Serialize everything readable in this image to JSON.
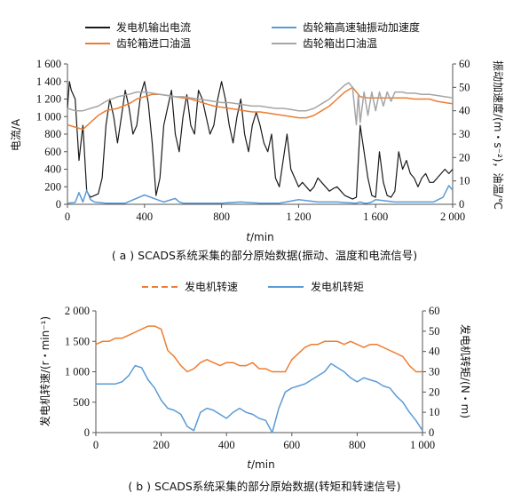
{
  "chart_data": [
    {
      "type": "line",
      "caption": "( a ) SCADS系统采集的部分原始数据(振动、温度和电流信号)",
      "xlabel_italic": "t",
      "xlabel_unit": "/min",
      "ylabel_left": "电流/A",
      "ylabel_right": "振动加速度/(m・s⁻²)，油温/℃",
      "xlim": [
        0,
        2000
      ],
      "xticks": [
        0,
        400,
        800,
        1200,
        1600,
        2000
      ],
      "xtick_labels": [
        "0",
        "400",
        "800",
        "1 200",
        "1 600",
        "2 000"
      ],
      "ylim_left": [
        0,
        1600
      ],
      "yticks_left_labels": [
        "0",
        "200",
        "400",
        "600",
        "800",
        "1 000",
        "1 200",
        "1 400",
        "1 600"
      ],
      "ylim_right": [
        0,
        60
      ],
      "yticks_right_labels": [
        "0",
        "10",
        "20",
        "30",
        "40",
        "50",
        "60"
      ],
      "legend_placement": "top, two columns",
      "series": [
        {
          "name": "发电机输出电流",
          "axis": "left",
          "color": "#1a1a1a",
          "x": [
            0,
            10,
            20,
            40,
            60,
            80,
            100,
            120,
            140,
            160,
            180,
            200,
            220,
            240,
            260,
            280,
            300,
            320,
            340,
            360,
            380,
            400,
            420,
            440,
            460,
            480,
            500,
            520,
            540,
            560,
            580,
            600,
            620,
            640,
            660,
            680,
            700,
            720,
            740,
            760,
            780,
            800,
            820,
            840,
            860,
            880,
            900,
            920,
            940,
            960,
            980,
            1000,
            1020,
            1040,
            1060,
            1080,
            1100,
            1120,
            1140,
            1160,
            1180,
            1200,
            1220,
            1240,
            1260,
            1280,
            1300,
            1320,
            1340,
            1360,
            1380,
            1400,
            1420,
            1440,
            1460,
            1480,
            1500,
            1520,
            1540,
            1560,
            1580,
            1600,
            1620,
            1640,
            1660,
            1680,
            1700,
            1720,
            1740,
            1760,
            1780,
            1800,
            1820,
            1840,
            1860,
            1880,
            1900,
            1920,
            1940,
            1960,
            1980,
            2000
          ],
          "y": [
            1100,
            1400,
            1300,
            1200,
            500,
            900,
            150,
            80,
            100,
            120,
            300,
            900,
            1200,
            1000,
            700,
            1000,
            1300,
            1100,
            800,
            900,
            1250,
            1400,
            1150,
            700,
            100,
            300,
            900,
            1100,
            1300,
            800,
            600,
            1000,
            1250,
            900,
            800,
            1300,
            1200,
            1000,
            800,
            900,
            1200,
            1400,
            1200,
            900,
            700,
            1000,
            1200,
            800,
            600,
            900,
            1050,
            900,
            700,
            600,
            800,
            300,
            200,
            500,
            800,
            400,
            300,
            200,
            250,
            200,
            150,
            200,
            300,
            250,
            200,
            150,
            180,
            200,
            150,
            100,
            80,
            60,
            80,
            900,
            600,
            300,
            100,
            80,
            600,
            250,
            100,
            80,
            150,
            600,
            400,
            500,
            350,
            300,
            200,
            300,
            350,
            250,
            250,
            300,
            350,
            400,
            350,
            400
          ]
        },
        {
          "name": "齿轮箱高速轴振动加速度",
          "axis": "right",
          "color": "#5b9bd5",
          "x": [
            0,
            40,
            60,
            80,
            100,
            120,
            140,
            160,
            200,
            300,
            400,
            500,
            560,
            580,
            600,
            700,
            800,
            900,
            1000,
            1100,
            1200,
            1300,
            1400,
            1500,
            1520,
            1540,
            1560,
            1580,
            1600,
            1700,
            1800,
            1900,
            1950,
            1980,
            2000
          ],
          "y": [
            0.5,
            0.8,
            5,
            1,
            6,
            2,
            1,
            0.8,
            0.5,
            0.5,
            4,
            1,
            2.5,
            1,
            0.5,
            0.5,
            0.5,
            1,
            0.5,
            0.5,
            2,
            1,
            1,
            0.5,
            1,
            0.5,
            0.5,
            1,
            2,
            1,
            1,
            1,
            3,
            8,
            6
          ]
        },
        {
          "name": "齿轮箱进口油温",
          "axis": "right",
          "color": "#ed7d31",
          "x": [
            0,
            40,
            80,
            120,
            160,
            200,
            260,
            320,
            360,
            400,
            440,
            480,
            520,
            560,
            600,
            640,
            680,
            720,
            760,
            800,
            840,
            880,
            920,
            960,
            1000,
            1040,
            1080,
            1120,
            1160,
            1200,
            1240,
            1280,
            1320,
            1360,
            1400,
            1440,
            1460,
            1470,
            1480,
            1500,
            1520,
            1560,
            1600,
            1640,
            1680,
            1720,
            1760,
            1800,
            1840,
            1880,
            1920,
            1960,
            2000
          ],
          "y": [
            34,
            33,
            32,
            35,
            38,
            40,
            41,
            43,
            45,
            46,
            47,
            47,
            46.5,
            46,
            45.5,
            45,
            44,
            43,
            42,
            41.5,
            41,
            40.5,
            40,
            39.5,
            39.5,
            39,
            38.5,
            38,
            37.5,
            37,
            37,
            38,
            40,
            42,
            45,
            48,
            49,
            49.5,
            50,
            48,
            46,
            45.5,
            45.5,
            45.5,
            45.5,
            45.5,
            45.5,
            45,
            45,
            45,
            44,
            43.5,
            43
          ]
        },
        {
          "name": "齿轮箱出口油温",
          "axis": "right",
          "color": "#a5a5a5",
          "x": [
            0,
            40,
            80,
            120,
            160,
            200,
            260,
            320,
            360,
            400,
            440,
            480,
            520,
            560,
            600,
            640,
            680,
            720,
            760,
            800,
            840,
            880,
            920,
            960,
            1000,
            1040,
            1080,
            1120,
            1160,
            1200,
            1240,
            1280,
            1320,
            1360,
            1400,
            1440,
            1460,
            1480,
            1490,
            1500,
            1510,
            1520,
            1540,
            1560,
            1580,
            1600,
            1620,
            1640,
            1660,
            1680,
            1700,
            1720,
            1740,
            1760,
            1800,
            1840,
            1880,
            1920,
            1960,
            2000
          ],
          "y": [
            41,
            40,
            40,
            41,
            42,
            44,
            46,
            47,
            48,
            48,
            47.5,
            47,
            46.5,
            46,
            46,
            45.5,
            45,
            44.5,
            44,
            43.5,
            43.5,
            43,
            42.5,
            42,
            42,
            41.5,
            41,
            41,
            40.5,
            40,
            40,
            41,
            43,
            45,
            48,
            51,
            52,
            50,
            42,
            34,
            47,
            35,
            48,
            38,
            48,
            40,
            48,
            42,
            48,
            44,
            48,
            48,
            48,
            47.5,
            47.5,
            47,
            47,
            46.5,
            46,
            45.5
          ]
        }
      ]
    },
    {
      "type": "line",
      "caption": "( b ) SCADS系统采集的部分原始数据(转矩和转速信号)",
      "xlabel_italic": "t",
      "xlabel_unit": "/min",
      "ylabel_left": "发电机转速/(r・min⁻¹)",
      "ylabel_right": "发电机转矩/(N・m)",
      "xlim": [
        0,
        1000
      ],
      "xticks": [
        0,
        200,
        400,
        600,
        800,
        1000
      ],
      "xtick_labels": [
        "0",
        "200",
        "400",
        "600",
        "800",
        "1 000"
      ],
      "ylim_left": [
        0,
        2000
      ],
      "yticks_left_labels": [
        "0",
        "500",
        "1 000",
        "1 500",
        "2 000"
      ],
      "ylim_right": [
        0,
        60
      ],
      "yticks_right_labels": [
        "0",
        "10",
        "20",
        "30",
        "40",
        "50",
        "60"
      ],
      "legend_placement": "top",
      "series": [
        {
          "name": "发电机转速",
          "axis": "left",
          "color": "#ed7d31",
          "dashed_legend": true,
          "x": [
            0,
            20,
            40,
            60,
            80,
            100,
            120,
            140,
            160,
            180,
            200,
            220,
            240,
            260,
            280,
            300,
            320,
            340,
            360,
            380,
            400,
            420,
            440,
            460,
            480,
            500,
            520,
            540,
            560,
            580,
            600,
            620,
            640,
            660,
            680,
            700,
            720,
            740,
            760,
            780,
            800,
            820,
            840,
            860,
            880,
            900,
            920,
            940,
            960,
            980,
            1000
          ],
          "y": [
            1450,
            1500,
            1500,
            1550,
            1550,
            1600,
            1650,
            1700,
            1750,
            1750,
            1700,
            1350,
            1250,
            1100,
            1000,
            1050,
            1150,
            1200,
            1150,
            1100,
            1150,
            1150,
            1100,
            1100,
            1150,
            1050,
            1050,
            1000,
            1000,
            1000,
            1200,
            1300,
            1400,
            1450,
            1450,
            1500,
            1500,
            1500,
            1450,
            1500,
            1450,
            1400,
            1450,
            1450,
            1400,
            1350,
            1300,
            1250,
            1100,
            1000,
            1000
          ]
        },
        {
          "name": "发电机转矩",
          "axis": "right",
          "color": "#5b9bd5",
          "x": [
            0,
            20,
            40,
            60,
            80,
            100,
            120,
            140,
            160,
            180,
            200,
            220,
            240,
            260,
            280,
            300,
            320,
            340,
            360,
            380,
            400,
            420,
            440,
            460,
            480,
            500,
            520,
            540,
            560,
            580,
            600,
            620,
            640,
            660,
            680,
            700,
            720,
            740,
            760,
            780,
            800,
            820,
            840,
            860,
            880,
            900,
            920,
            940,
            960,
            980,
            1000
          ],
          "y": [
            24,
            24,
            24,
            24,
            25,
            28,
            33,
            32,
            26,
            22,
            16,
            12,
            11,
            9,
            3,
            1,
            10,
            12,
            11,
            9,
            7,
            10,
            12,
            10,
            9,
            7,
            6,
            0,
            12,
            20,
            22,
            23,
            24,
            26,
            28,
            30,
            34,
            32,
            30,
            27,
            25,
            27,
            26,
            25,
            23,
            22,
            18,
            15,
            10,
            6,
            1
          ]
        }
      ]
    }
  ]
}
